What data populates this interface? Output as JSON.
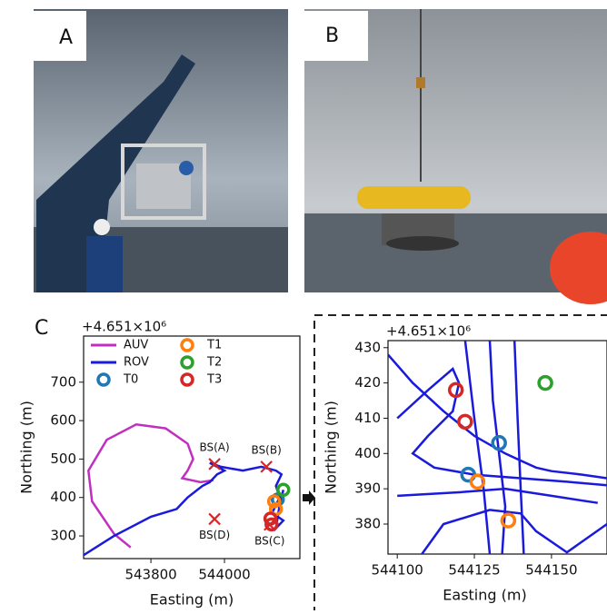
{
  "panel_labels": [
    "A",
    "B",
    "C"
  ],
  "chart_data": [
    {
      "type": "line",
      "offset_label": "+4.651×10⁶",
      "xlabel": "Easting (m)",
      "ylabel": "Northing (m)",
      "xlim": [
        543617,
        544205
      ],
      "ylim": [
        241,
        820
      ],
      "xticks": [
        543800,
        544000
      ],
      "yticks": [
        300,
        400,
        500,
        600,
        700
      ],
      "legend": "upper left",
      "series": [
        {
          "name": "AUV",
          "color": "#c030c0",
          "x": [
            543745,
            543700,
            543640,
            543630,
            543680,
            543760,
            543840,
            543900,
            543915,
            543900,
            543885,
            543935,
            543970
          ],
          "y": [
            270,
            305,
            390,
            470,
            550,
            590,
            580,
            540,
            500,
            470,
            450,
            440,
            445
          ]
        },
        {
          "name": "ROV",
          "color": "#1a1adc",
          "x": [
            543617,
            543700,
            543800,
            543870,
            543900,
            543940,
            543960,
            543980,
            544000,
            543960,
            543990,
            544050,
            544100,
            544140,
            544155,
            544140,
            544150,
            544130,
            544160,
            544140,
            544150,
            544160
          ],
          "y": [
            250,
            300,
            350,
            370,
            400,
            430,
            440,
            460,
            470,
            490,
            480,
            470,
            480,
            470,
            460,
            430,
            400,
            360,
            340,
            320,
            380,
            420
          ]
        }
      ],
      "markers": [
        {
          "name": "T0",
          "color": "#1f77b4",
          "x": [
            544145
          ],
          "y": [
            395
          ]
        },
        {
          "name": "T1",
          "color": "#ff7f0e",
          "x": [
            544140,
            544135
          ],
          "y": [
            370,
            390
          ]
        },
        {
          "name": "T2",
          "color": "#2ca02c",
          "x": [
            544160
          ],
          "y": [
            420
          ]
        },
        {
          "name": "T3",
          "color": "#d62728",
          "x": [
            544125,
            544128
          ],
          "y": [
            345,
            330
          ]
        }
      ],
      "annotations": [
        {
          "text": "BS(A)",
          "x": 543973,
          "y": 487
        },
        {
          "text": "BS(B)",
          "x": 544114,
          "y": 480
        },
        {
          "text": "BS(D)",
          "x": 543973,
          "y": 344
        },
        {
          "text": "BS(C)",
          "x": 544123,
          "y": 329
        }
      ]
    },
    {
      "type": "line",
      "offset_label": "+4.651×10⁶",
      "xlabel": "Easting (m)",
      "ylabel": "Northing (m)",
      "xlim": [
        544097,
        544168
      ],
      "ylim": [
        371.5,
        432
      ],
      "xticks": [
        544100,
        544125,
        544150
      ],
      "yticks": [
        380,
        390,
        400,
        410,
        420,
        430
      ],
      "series": [
        {
          "color": "#1a1adc",
          "x": [
            544097,
            544105,
            544115,
            544125,
            544135,
            544140,
            544145,
            544150,
            544160,
            544168,
            null,
            544130,
            544131,
            544133,
            544135,
            544134,
            null,
            544138,
            544139,
            544140,
            544141,
            null,
            544100,
            544110,
            544118,
            544120,
            544118,
            544110,
            544105,
            544112,
            544125,
            544140,
            544155,
            544168,
            null,
            544122,
            544125,
            544128,
            544130,
            null,
            544100,
            544120,
            544135,
            544150,
            544165,
            null,
            544108,
            544115,
            544130,
            544140,
            544145,
            544155,
            544168
          ],
          "y": [
            428,
            420,
            412,
            405,
            400,
            398,
            396,
            395,
            394,
            393,
            null,
            432,
            415,
            400,
            385,
            371.5,
            null,
            432,
            410,
            390,
            371.5,
            null,
            410,
            418,
            424,
            420,
            412,
            405,
            400,
            396,
            394,
            393,
            392,
            391,
            null,
            432,
            410,
            390,
            371.5,
            null,
            388,
            389,
            390,
            388,
            386,
            null,
            371.5,
            380,
            384,
            383,
            378,
            372,
            380
          ]
        }
      ],
      "markers": [
        {
          "color": "#1f77b4",
          "x": [
            544123,
            544133
          ],
          "y": [
            394,
            403
          ]
        },
        {
          "color": "#ff7f0e",
          "x": [
            544126,
            544136
          ],
          "y": [
            392,
            381
          ]
        },
        {
          "color": "#2ca02c",
          "x": [
            544148
          ],
          "y": [
            420
          ]
        },
        {
          "color": "#d62728",
          "x": [
            544119,
            544122
          ],
          "y": [
            418,
            409
          ]
        }
      ]
    }
  ]
}
